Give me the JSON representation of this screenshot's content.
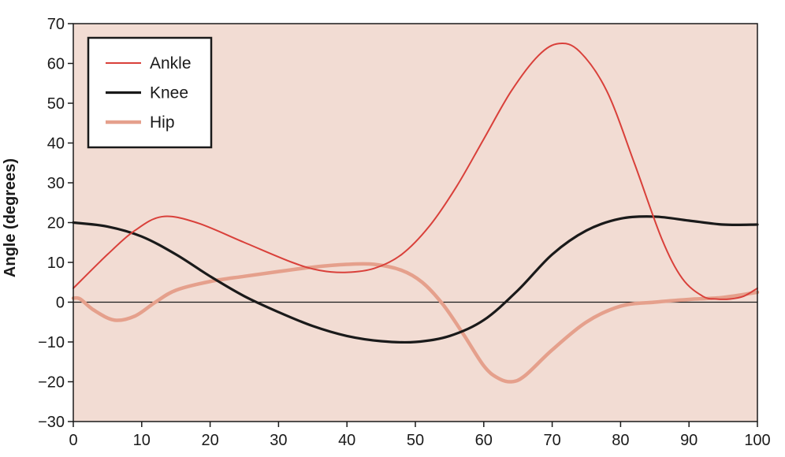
{
  "chart_data": {
    "type": "line",
    "title": "",
    "xlabel": "",
    "ylabel": "Angle (degrees)",
    "xlim": [
      0,
      100
    ],
    "ylim": [
      -30,
      70
    ],
    "xticks": [
      0,
      10,
      20,
      30,
      40,
      50,
      60,
      70,
      80,
      90,
      100
    ],
    "yticks": [
      -30,
      -20,
      -10,
      0,
      10,
      20,
      30,
      40,
      50,
      60,
      70
    ],
    "xtick_labels": [
      "0",
      "10",
      "20",
      "30",
      "40",
      "50",
      "60",
      "70",
      "80",
      "90",
      "100"
    ],
    "ytick_labels": [
      "−30",
      "−20",
      "−10",
      "0",
      "10",
      "20",
      "30",
      "40",
      "50",
      "60",
      "70"
    ],
    "grid": false,
    "zero_line": true,
    "background_color": "#f2dcd3",
    "legend_position": "top-left",
    "series": [
      {
        "name": "Ankle",
        "color": "#d9403a",
        "width": "thin",
        "x": [
          0,
          5,
          9,
          13,
          18,
          25,
          32,
          36,
          40,
          44,
          48,
          52,
          56,
          60,
          64,
          68,
          71,
          74,
          78,
          82,
          86,
          89,
          92,
          94,
          96,
          98,
          100
        ],
        "y": [
          3.5,
          12,
          18,
          21.5,
          20,
          15,
          10,
          8,
          7.5,
          8.5,
          12,
          19,
          29,
          41,
          53,
          62,
          65,
          63,
          53,
          35,
          16,
          6,
          1.5,
          0.8,
          0.8,
          1.5,
          3.5
        ]
      },
      {
        "name": "Knee",
        "color": "#1a1a1a",
        "width": "thick",
        "x": [
          0,
          5,
          10,
          15,
          20,
          25,
          30,
          35,
          40,
          45,
          50,
          55,
          60,
          65,
          70,
          75,
          80,
          85,
          90,
          95,
          100
        ],
        "y": [
          20,
          19,
          16.5,
          12,
          6.5,
          1.5,
          -2.5,
          -6,
          -8.5,
          -9.8,
          -10,
          -8.5,
          -4.5,
          3,
          12,
          18,
          21,
          21.5,
          20.5,
          19.5,
          19.5
        ]
      },
      {
        "name": "Hip",
        "color": "#e5a08c",
        "width": "thicker",
        "x": [
          0,
          1,
          3,
          6,
          9,
          12,
          15,
          20,
          25,
          30,
          35,
          40,
          44,
          48,
          51,
          54,
          57,
          60,
          62,
          64,
          66,
          70,
          75,
          80,
          85,
          90,
          95,
          100
        ],
        "y": [
          1,
          0.8,
          -2,
          -4.5,
          -3.5,
          0,
          3,
          5.2,
          6.5,
          7.7,
          8.8,
          9.5,
          9.5,
          8,
          5,
          -0.5,
          -8,
          -16,
          -19,
          -20,
          -18.5,
          -12,
          -5,
          -1,
          0,
          0.7,
          1.2,
          2.5
        ]
      }
    ]
  }
}
